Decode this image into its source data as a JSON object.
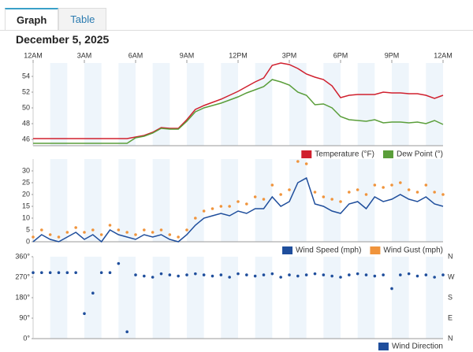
{
  "tabs": [
    "Graph",
    "Table"
  ],
  "date": "December 5, 2025",
  "chart_data": [
    {
      "type": "line",
      "x": [
        0,
        0.5,
        1,
        1.5,
        2,
        2.5,
        3,
        3.5,
        4,
        4.5,
        5,
        5.5,
        6,
        6.5,
        7,
        7.5,
        8,
        8.5,
        9,
        9.5,
        10,
        10.5,
        11,
        11.5,
        12,
        12.5,
        13,
        13.5,
        14,
        14.5,
        15,
        15.5,
        16,
        16.5,
        17,
        17.5,
        18,
        18.5,
        19,
        19.5,
        20,
        20.5,
        21,
        21.5,
        22,
        22.5,
        23,
        23.5,
        24
      ],
      "xlim": [
        0,
        24
      ],
      "xticks": [
        {
          "value": 0,
          "label": "12AM"
        },
        {
          "value": 3,
          "label": "3AM"
        },
        {
          "value": 6,
          "label": "6AM"
        },
        {
          "value": 9,
          "label": "9AM"
        },
        {
          "value": 12,
          "label": "12PM"
        },
        {
          "value": 15,
          "label": "3PM"
        },
        {
          "value": 18,
          "label": "6PM"
        },
        {
          "value": 21,
          "label": "9PM"
        },
        {
          "value": 24,
          "label": "12AM"
        }
      ],
      "ylim": [
        45.2,
        55.7
      ],
      "yticks": [
        46,
        48,
        50,
        52,
        54
      ],
      "series": [
        {
          "name": "Temperature (°F)",
          "color": "#d0202e",
          "values": [
            46.1,
            46.1,
            46.1,
            46.1,
            46.1,
            46.1,
            46.1,
            46.1,
            46.1,
            46.1,
            46.1,
            46.1,
            46.3,
            46.5,
            46.9,
            47.5,
            47.4,
            47.4,
            48.5,
            49.8,
            50.3,
            50.7,
            51.1,
            51.6,
            52.1,
            52.7,
            53.3,
            53.8,
            55.4,
            55.7,
            55.5,
            55.0,
            54.3,
            53.9,
            53.6,
            52.8,
            51.3,
            51.6,
            51.7,
            51.7,
            51.7,
            52.0,
            51.9,
            51.9,
            51.8,
            51.8,
            51.6,
            51.2,
            51.6
          ]
        },
        {
          "name": "Dew Point (°)",
          "color": "#5a9e3a",
          "values": [
            45.5,
            45.5,
            45.5,
            45.5,
            45.5,
            45.5,
            45.5,
            45.5,
            45.5,
            45.5,
            45.5,
            45.5,
            46.2,
            46.4,
            46.8,
            47.4,
            47.3,
            47.3,
            48.3,
            49.5,
            50.0,
            50.3,
            50.6,
            51.0,
            51.4,
            51.9,
            52.3,
            52.7,
            53.6,
            53.3,
            52.9,
            52.0,
            51.6,
            50.4,
            50.5,
            50.0,
            48.9,
            48.5,
            48.4,
            48.3,
            48.5,
            48.1,
            48.2,
            48.2,
            48.1,
            48.2,
            48.0,
            48.4,
            47.9
          ]
        }
      ]
    },
    {
      "type": "line",
      "x": [
        0,
        0.5,
        1,
        1.5,
        2,
        2.5,
        3,
        3.5,
        4,
        4.5,
        5,
        5.5,
        6,
        6.5,
        7,
        7.5,
        8,
        8.5,
        9,
        9.5,
        10,
        10.5,
        11,
        11.5,
        12,
        12.5,
        13,
        13.5,
        14,
        14.5,
        15,
        15.5,
        16,
        16.5,
        17,
        17.5,
        18,
        18.5,
        19,
        19.5,
        20,
        20.5,
        21,
        21.5,
        22,
        22.5,
        23,
        23.5,
        24
      ],
      "xlim": [
        0,
        24
      ],
      "ylim": [
        0,
        35
      ],
      "yticks": [
        0,
        5,
        10,
        15,
        20,
        25,
        30
      ],
      "series": [
        {
          "name": "Wind Speed (mph)",
          "color": "#1f4e9c",
          "values": [
            0,
            3,
            1,
            0,
            2,
            4,
            1,
            3,
            0,
            5,
            3,
            2,
            1,
            3,
            2,
            3,
            1,
            0,
            3,
            7,
            10,
            11,
            12,
            11,
            13,
            12,
            14,
            14,
            19,
            15,
            17,
            25,
            27,
            16,
            15,
            13,
            12,
            16,
            17,
            14,
            19,
            17,
            18,
            20,
            18,
            17,
            19,
            16,
            15
          ]
        },
        {
          "name": "Wind Gust (mph)",
          "color": "#f0943c",
          "marker": "dot",
          "values": [
            2,
            5,
            3,
            2,
            4,
            6,
            4,
            5,
            3,
            7,
            5,
            4,
            3,
            5,
            4,
            5,
            3,
            2,
            5,
            10,
            13,
            14,
            15,
            15,
            17,
            16,
            19,
            18,
            24,
            20,
            22,
            34,
            33,
            21,
            19,
            18,
            17,
            21,
            22,
            20,
            24,
            23,
            24,
            25,
            22,
            21,
            24,
            21,
            20
          ]
        }
      ]
    },
    {
      "type": "scatter",
      "x": [
        0,
        0.5,
        1,
        1.5,
        2,
        2.5,
        3,
        3.5,
        4,
        4.5,
        5,
        5.5,
        6,
        6.5,
        7,
        7.5,
        8,
        8.5,
        9,
        9.5,
        10,
        10.5,
        11,
        11.5,
        12,
        12.5,
        13,
        13.5,
        14,
        14.5,
        15,
        15.5,
        16,
        16.5,
        17,
        17.5,
        18,
        18.5,
        19,
        19.5,
        20,
        20.5,
        21,
        21.5,
        22,
        22.5,
        23,
        23.5,
        24
      ],
      "xlim": [
        0,
        24
      ],
      "ylim": [
        0,
        360
      ],
      "yticks": [
        {
          "value": 0,
          "label": "0°"
        },
        {
          "value": 90,
          "label": "90°"
        },
        {
          "value": 180,
          "label": "180°"
        },
        {
          "value": 270,
          "label": "270°"
        },
        {
          "value": 360,
          "label": "360°"
        }
      ],
      "y2ticks": [
        {
          "value": 0,
          "label": "N"
        },
        {
          "value": 90,
          "label": "E"
        },
        {
          "value": 180,
          "label": "S"
        },
        {
          "value": 270,
          "label": "W"
        },
        {
          "value": 360,
          "label": "N"
        }
      ],
      "series": [
        {
          "name": "Wind Direction",
          "color": "#1f4e9c",
          "values": [
            290,
            290,
            290,
            290,
            290,
            290,
            110,
            200,
            290,
            290,
            330,
            30,
            280,
            275,
            270,
            285,
            280,
            275,
            280,
            285,
            280,
            275,
            280,
            270,
            285,
            280,
            275,
            280,
            285,
            270,
            280,
            275,
            280,
            285,
            280,
            275,
            270,
            280,
            285,
            280,
            275,
            280,
            220,
            280,
            285,
            275,
            280,
            270,
            280
          ]
        }
      ]
    }
  ]
}
